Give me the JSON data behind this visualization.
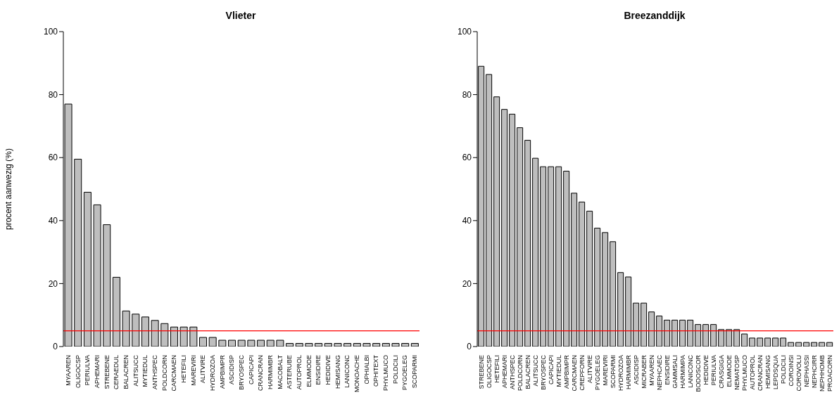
{
  "chart_data": [
    {
      "type": "bar",
      "title": "Vlieter",
      "ylabel": "procent aanwezig (%)",
      "categories": [
        "MYAAREN",
        "OLIGOCSP",
        "PERIULVA",
        "APHEMARI",
        "STREBENE",
        "CERAEDUL",
        "BALACREN",
        "ALITSUCC",
        "MYTIEDUL",
        "ANTHSPEC",
        "POLDCORN",
        "CARCMAEN",
        "HETEFILI",
        "MAREVIRI",
        "ALITVIRE",
        "HYDROZOA",
        "AMPBIMPR",
        "ASCIDISP",
        "BRYOSPEC",
        "CAPICAPI",
        "CRANCRAN",
        "HARMIMBR",
        "MACOBALT",
        "ASTERUBE",
        "AUTOPROL",
        "ELMMODE",
        "ENSIDIRE",
        "HEDIDIVE",
        "HEMISANG",
        "LANICONC",
        "MONOACHE",
        "OPHIALBI",
        "OPHITEXT",
        "PHYLMUCO",
        "POLDCILI",
        "PYGOELEG",
        "SCOPARMI"
      ],
      "values": [
        77,
        59.5,
        49,
        45,
        38.7,
        22,
        11.3,
        10.3,
        9.4,
        8.3,
        7.3,
        6.2,
        6.2,
        6.2,
        2.9,
        2.9,
        2,
        2,
        2,
        2,
        2,
        2,
        2,
        1,
        1,
        1,
        1,
        1,
        1,
        1,
        1,
        1,
        1,
        1,
        1,
        1,
        1
      ],
      "color": "#bebebe",
      "ylim": [
        0,
        100
      ],
      "yticks": [
        0,
        20,
        40,
        60,
        80,
        100
      ],
      "ref_lines": [
        {
          "axis": "y",
          "value": 5,
          "color": "#ff0000"
        }
      ]
    },
    {
      "type": "bar",
      "title": "Breezanddijk",
      "categories": [
        "STREBENE",
        "OLIGOCSP",
        "HETEFILI",
        "APHEMARI",
        "ANTHSPEC",
        "POLDCORN",
        "BALACREN",
        "ALITSUCC",
        "BRYOSPEC",
        "CAPICAPI",
        "MYTIEDUL",
        "AMPBIMPR",
        "CARCMAEN",
        "CREPFORN",
        "ALITVIRE",
        "PYGOELEG",
        "MAREVIRI",
        "SCOPARMI",
        "HYDROZOA",
        "HARMIMBR",
        "ASCIDISP",
        "MICRABER",
        "MYAAREN",
        "NEPHCAEC",
        "ENSIDIRE",
        "GAMMSALI",
        "HARMIMPA",
        "LANICONC",
        "BODOSCOR",
        "HEDIDIVE",
        "PERIULVA",
        "CRASGIGA",
        "ELMMODE",
        "NEMATOSP",
        "PHYLMUCO",
        "AUTOPROL",
        "CRANCRAN",
        "HEMISANG",
        "LEPDSQUA",
        "POLDCILI",
        "COROINSI",
        "COROVOLU",
        "NEPHASSI",
        "NEPHCIRR",
        "NEPHHOMB",
        "PROACORN"
      ],
      "values": [
        89,
        86.4,
        79.3,
        75.3,
        73.8,
        69.5,
        65.5,
        59.8,
        57.1,
        57.1,
        57.1,
        55.7,
        48.7,
        45.9,
        43,
        37.6,
        36.2,
        33.3,
        23.5,
        22.1,
        13.8,
        13.8,
        11,
        9.7,
        8.4,
        8.4,
        8.4,
        8.4,
        7,
        7,
        7,
        5.4,
        5.4,
        5.4,
        4,
        2.7,
        2.7,
        2.7,
        2.7,
        2.7,
        1.3,
        1.3,
        1.3,
        1.3,
        1.3,
        1.3
      ],
      "color": "#bebebe",
      "ylim": [
        0,
        100
      ],
      "yticks": [
        0,
        20,
        40,
        60,
        80,
        100
      ],
      "ref_lines": [
        {
          "axis": "y",
          "value": 5,
          "color": "#ff0000"
        }
      ]
    }
  ]
}
